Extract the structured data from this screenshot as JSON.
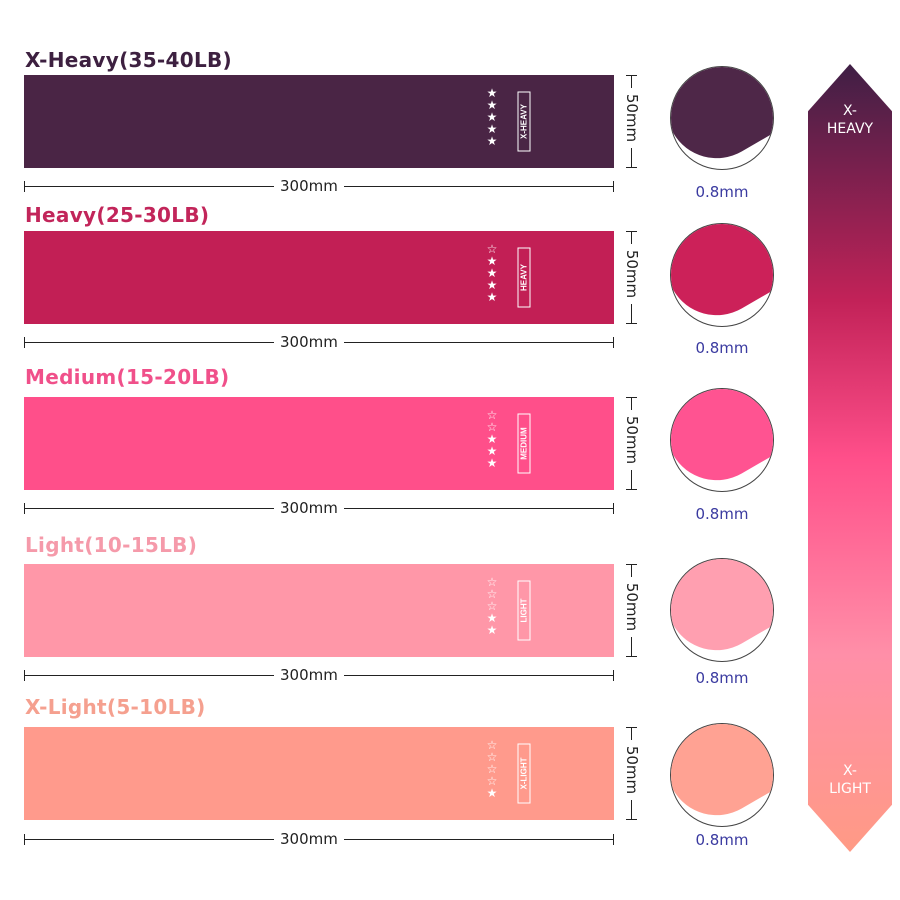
{
  "bands": [
    {
      "title": "X-Heavy(35-40LB)",
      "level": "X-HEAVY",
      "stars": 5,
      "color": "#4a2545",
      "title_color": "#3d2040",
      "width": "300mm",
      "height": "50mm",
      "thickness": "0.8mm"
    },
    {
      "title": "Heavy(25-30LB)",
      "level": "HEAVY",
      "stars": 4,
      "color": "#c21f55",
      "title_color": "#c2255a",
      "width": "300mm",
      "height": "50mm",
      "thickness": "0.8mm"
    },
    {
      "title": "Medium(15-20LB)",
      "level": "MEDIUM",
      "stars": 3,
      "color": "#ff4f8a",
      "title_color": "#f0508a",
      "width": "300mm",
      "height": "50mm",
      "thickness": "0.8mm"
    },
    {
      "title": "Light(10-15LB)",
      "level": "LIGHT",
      "stars": 2,
      "color": "#ff97a8",
      "title_color": "#f59aaa",
      "width": "300mm",
      "height": "50mm",
      "thickness": "0.8mm"
    },
    {
      "title": "X-Light(5-10LB)",
      "level": "X-LIGHT",
      "stars": 1,
      "color": "#ff9a8c",
      "title_color": "#f5a08f",
      "width": "300mm",
      "height": "50mm",
      "thickness": "0.8mm"
    }
  ],
  "scale": {
    "top_line1": "X-",
    "top_line2": "HEAVY",
    "bottom_line1": "X-",
    "bottom_line2": "LIGHT"
  }
}
